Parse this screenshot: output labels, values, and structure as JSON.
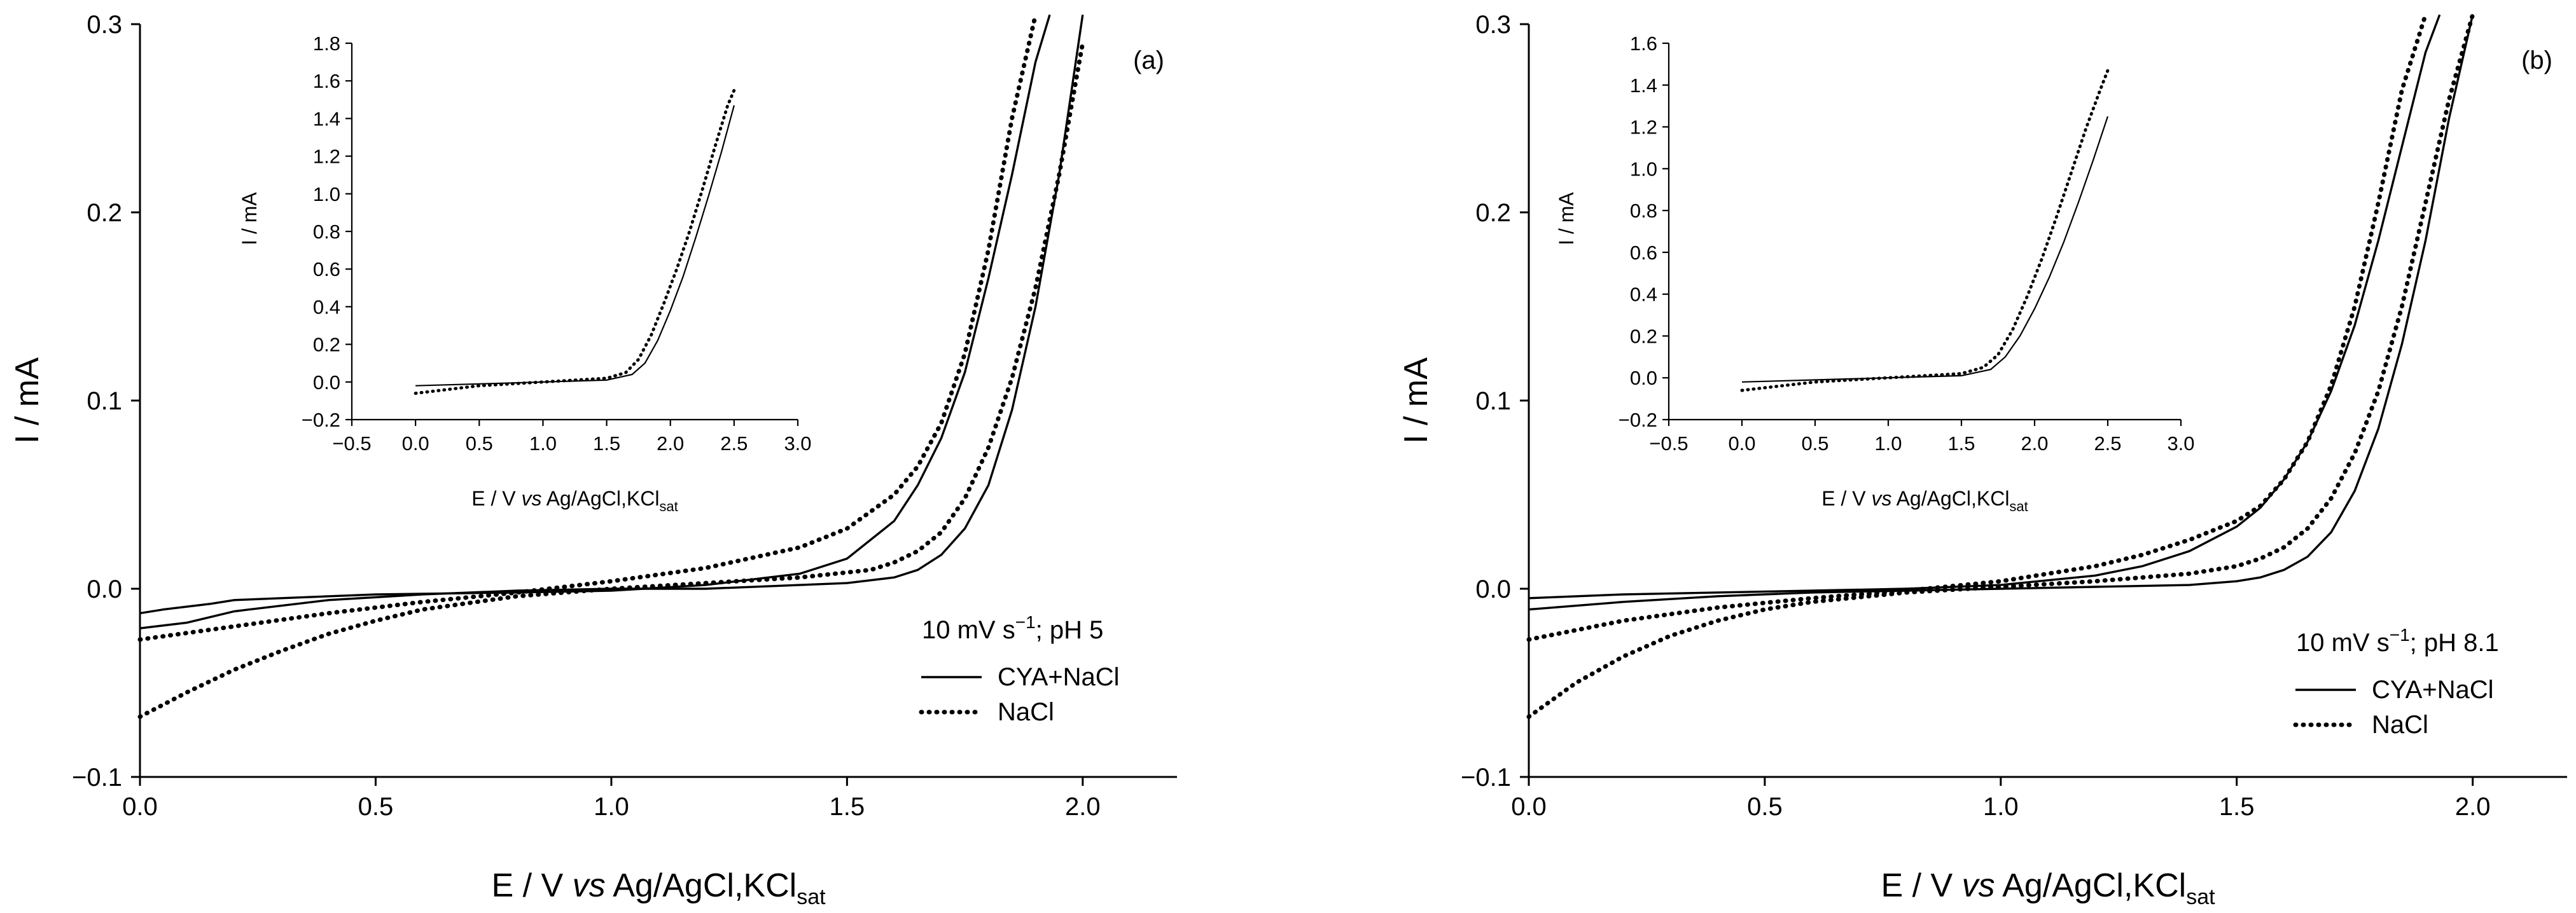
{
  "chart_data": [
    {
      "type": "line",
      "panel_label": "(a)",
      "xlabel_prefix": "E / V ",
      "xlabel_italic": "vs",
      "xlabel_main": " Ag/AgCl,KCl",
      "xlabel_sub": "sat",
      "ylabel": "I / mA",
      "xlim": [
        0,
        2.2
      ],
      "ylim": [
        -0.1,
        0.3
      ],
      "xticks": [
        "0.0",
        "0.5",
        "1.0",
        "1.5",
        "2.0"
      ],
      "yticks": [
        "−0.1",
        "0.0",
        "0.1",
        "0.2",
        "0.3"
      ],
      "legend_title_prefix": "10 mV s",
      "legend_title_sup": "−1",
      "legend_title_suffix": "; pH 5",
      "legend": [
        {
          "label": "CYA+NaCl",
          "style": "solid"
        },
        {
          "label": "NaCl",
          "style": "dotted"
        }
      ],
      "series": [
        {
          "name": "CYA+NaCl forward",
          "style": "solid",
          "x": [
            0.0,
            0.1,
            0.2,
            0.4,
            0.6,
            0.8,
            1.0,
            1.2,
            1.4,
            1.5,
            1.6,
            1.65,
            1.7,
            1.75,
            1.8,
            1.85,
            1.9,
            1.95,
            2.0
          ],
          "y": [
            -0.021,
            -0.018,
            -0.012,
            -0.006,
            -0.003,
            -0.001,
            0.0,
            0.0,
            0.002,
            0.003,
            0.006,
            0.01,
            0.018,
            0.032,
            0.055,
            0.095,
            0.15,
            0.22,
            0.305
          ]
        },
        {
          "name": "CYA+NaCl reverse",
          "style": "solid",
          "x": [
            0.0,
            0.05,
            0.15,
            0.2,
            0.3,
            0.5,
            0.8,
            1.0,
            1.2,
            1.4,
            1.5,
            1.6,
            1.65,
            1.7,
            1.75,
            1.8,
            1.85,
            1.9,
            1.93
          ],
          "y": [
            -0.013,
            -0.011,
            -0.008,
            -0.006,
            -0.005,
            -0.003,
            -0.002,
            -0.001,
            0.002,
            0.008,
            0.016,
            0.036,
            0.055,
            0.08,
            0.115,
            0.165,
            0.22,
            0.28,
            0.305
          ]
        },
        {
          "name": "NaCl forward",
          "style": "dotted",
          "x": [
            0.0,
            0.1,
            0.2,
            0.3,
            0.4,
            0.5,
            0.6,
            0.8,
            1.0,
            1.2,
            1.4,
            1.55,
            1.6,
            1.65,
            1.7,
            1.75,
            1.8,
            1.85,
            1.9,
            1.95,
            2.0
          ],
          "y": [
            -0.068,
            -0.055,
            -0.043,
            -0.033,
            -0.024,
            -0.017,
            -0.011,
            -0.004,
            0.0,
            0.003,
            0.006,
            0.01,
            0.014,
            0.02,
            0.03,
            0.048,
            0.075,
            0.112,
            0.16,
            0.22,
            0.29
          ]
        },
        {
          "name": "NaCl reverse",
          "style": "dotted",
          "x": [
            0.0,
            0.2,
            0.4,
            0.6,
            0.8,
            1.0,
            1.2,
            1.4,
            1.5,
            1.6,
            1.65,
            1.7,
            1.75,
            1.8,
            1.85,
            1.9
          ],
          "y": [
            -0.027,
            -0.02,
            -0.013,
            -0.007,
            -0.002,
            0.004,
            0.011,
            0.022,
            0.032,
            0.05,
            0.065,
            0.088,
            0.125,
            0.18,
            0.25,
            0.305
          ]
        }
      ],
      "inset": {
        "ylabel": "I / mA",
        "xlim": [
          -0.5,
          3.0
        ],
        "ylim": [
          -0.2,
          1.8
        ],
        "xticks": [
          "−0.5",
          "0.0",
          "0.5",
          "1.0",
          "1.5",
          "2.0",
          "2.5",
          "3.0"
        ],
        "yticks": [
          "−0.2",
          "0.0",
          "0.2",
          "0.4",
          "0.6",
          "0.8",
          "1.0",
          "1.2",
          "1.4",
          "1.6",
          "1.8"
        ],
        "series": [
          {
            "name": "CYA+NaCl",
            "style": "solid",
            "x": [
              0.0,
              0.5,
              1.0,
              1.5,
              1.7,
              1.8,
              1.9,
              2.0,
              2.1,
              2.2,
              2.3,
              2.4,
              2.5
            ],
            "y": [
              -0.02,
              -0.01,
              0.0,
              0.01,
              0.04,
              0.1,
              0.22,
              0.38,
              0.56,
              0.77,
              0.99,
              1.22,
              1.47
            ]
          },
          {
            "name": "NaCl",
            "style": "dotted",
            "x": [
              0.0,
              0.5,
              1.0,
              1.5,
              1.65,
              1.75,
              1.85,
              1.95,
              2.05,
              2.15,
              2.25,
              2.35,
              2.45,
              2.5
            ],
            "y": [
              -0.06,
              -0.02,
              0.0,
              0.02,
              0.05,
              0.12,
              0.25,
              0.42,
              0.6,
              0.8,
              1.02,
              1.25,
              1.47,
              1.55
            ]
          }
        ]
      }
    },
    {
      "type": "line",
      "panel_label": "(b)",
      "xlabel_prefix": "E / V ",
      "xlabel_italic": "vs",
      "xlabel_main": " Ag/AgCl,KCl",
      "xlabel_sub": "sat",
      "ylabel": "I / mA",
      "xlim": [
        0,
        2.2
      ],
      "ylim": [
        -0.1,
        0.3
      ],
      "xticks": [
        "0.0",
        "0.5",
        "1.0",
        "1.5",
        "2.0"
      ],
      "yticks": [
        "−0.1",
        "0.0",
        "0.1",
        "0.2",
        "0.3"
      ],
      "legend_title_prefix": "10 mV s",
      "legend_title_sup": "−1",
      "legend_title_suffix": "; pH 8.1",
      "legend": [
        {
          "label": "CYA+NaCl",
          "style": "solid"
        },
        {
          "label": "NaCl",
          "style": "dotted"
        }
      ],
      "series": [
        {
          "name": "CYA+NaCl forward",
          "style": "solid",
          "x": [
            0.0,
            0.2,
            0.4,
            0.6,
            0.8,
            1.0,
            1.2,
            1.4,
            1.5,
            1.55,
            1.6,
            1.65,
            1.7,
            1.75,
            1.8,
            1.85,
            1.9,
            1.95,
            2.0
          ],
          "y": [
            -0.011,
            -0.007,
            -0.004,
            -0.002,
            -0.001,
            0.0,
            0.001,
            0.002,
            0.004,
            0.006,
            0.01,
            0.017,
            0.03,
            0.052,
            0.085,
            0.13,
            0.185,
            0.25,
            0.305
          ]
        },
        {
          "name": "CYA+NaCl reverse",
          "style": "solid",
          "x": [
            0.0,
            0.2,
            0.4,
            0.6,
            0.8,
            1.0,
            1.2,
            1.3,
            1.4,
            1.5,
            1.55,
            1.6,
            1.65,
            1.7,
            1.75,
            1.8,
            1.85,
            1.9,
            1.93
          ],
          "y": [
            -0.005,
            -0.003,
            -0.002,
            -0.001,
            0.0,
            0.002,
            0.007,
            0.012,
            0.02,
            0.033,
            0.043,
            0.058,
            0.078,
            0.105,
            0.14,
            0.185,
            0.235,
            0.285,
            0.305
          ]
        },
        {
          "name": "NaCl forward",
          "style": "dotted",
          "x": [
            0.0,
            0.1,
            0.2,
            0.3,
            0.4,
            0.5,
            0.6,
            0.8,
            1.0,
            1.2,
            1.4,
            1.5,
            1.55,
            1.6,
            1.65,
            1.7,
            1.75,
            1.8,
            1.85,
            1.9,
            1.95,
            2.0
          ],
          "y": [
            -0.068,
            -0.05,
            -0.036,
            -0.025,
            -0.017,
            -0.011,
            -0.007,
            -0.002,
            0.001,
            0.004,
            0.008,
            0.012,
            0.016,
            0.022,
            0.032,
            0.048,
            0.072,
            0.105,
            0.15,
            0.205,
            0.26,
            0.305
          ]
        },
        {
          "name": "NaCl reverse",
          "style": "dotted",
          "x": [
            0.0,
            0.2,
            0.4,
            0.6,
            0.8,
            1.0,
            1.2,
            1.3,
            1.4,
            1.5,
            1.55,
            1.6,
            1.65,
            1.7,
            1.75,
            1.8,
            1.85,
            1.9
          ],
          "y": [
            -0.027,
            -0.017,
            -0.01,
            -0.005,
            -0.001,
            0.004,
            0.012,
            0.018,
            0.026,
            0.036,
            0.044,
            0.058,
            0.078,
            0.108,
            0.15,
            0.205,
            0.265,
            0.305
          ]
        }
      ],
      "inset": {
        "ylabel": "I / mA",
        "xlim": [
          -0.5,
          3.0
        ],
        "ylim": [
          -0.2,
          1.6
        ],
        "xticks": [
          "−0.5",
          "0.0",
          "0.5",
          "1.0",
          "1.5",
          "2.0",
          "2.5",
          "3.0"
        ],
        "yticks": [
          "−0.2",
          "0.0",
          "0.2",
          "0.4",
          "0.6",
          "0.8",
          "1.0",
          "1.2",
          "1.4",
          "1.6"
        ],
        "series": [
          {
            "name": "CYA+NaCl",
            "style": "solid",
            "x": [
              0.0,
              0.5,
              1.0,
              1.5,
              1.7,
              1.8,
              1.9,
              2.0,
              2.1,
              2.2,
              2.3,
              2.4,
              2.5
            ],
            "y": [
              -0.02,
              -0.01,
              0.0,
              0.01,
              0.04,
              0.1,
              0.2,
              0.33,
              0.48,
              0.65,
              0.84,
              1.04,
              1.25
            ]
          },
          {
            "name": "NaCl",
            "style": "dotted",
            "x": [
              0.0,
              0.5,
              1.0,
              1.5,
              1.65,
              1.75,
              1.85,
              1.95,
              2.05,
              2.15,
              2.25,
              2.35,
              2.45,
              2.5
            ],
            "y": [
              -0.06,
              -0.02,
              0.0,
              0.02,
              0.05,
              0.11,
              0.23,
              0.39,
              0.57,
              0.77,
              0.98,
              1.19,
              1.38,
              1.47
            ]
          }
        ]
      }
    }
  ]
}
